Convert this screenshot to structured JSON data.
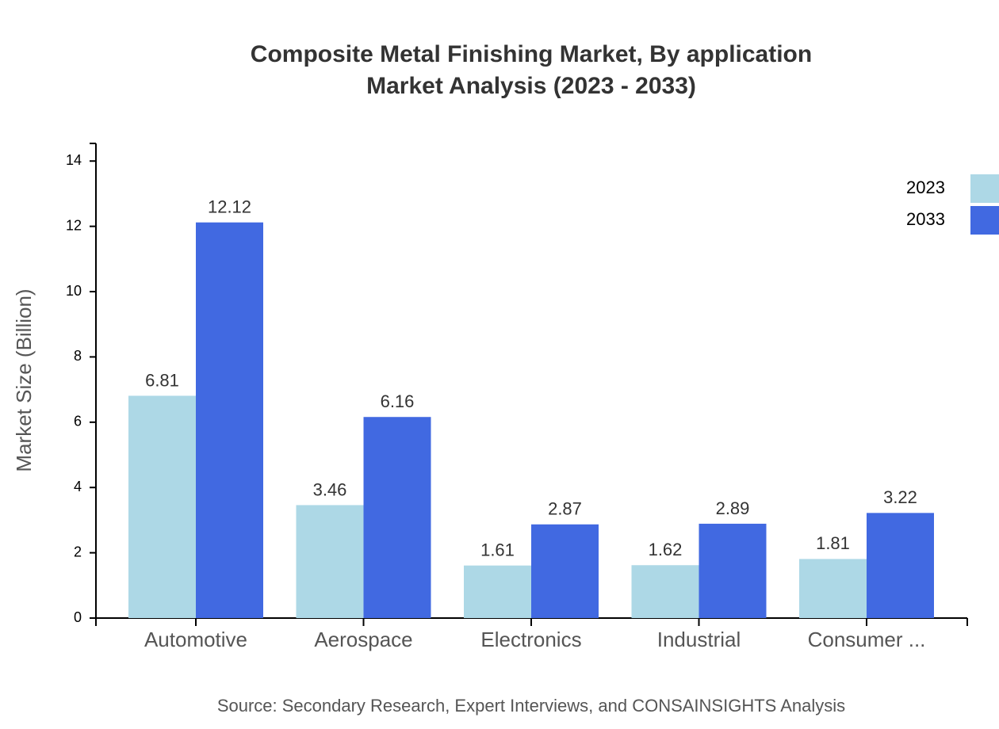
{
  "chart_data": {
    "type": "bar",
    "title": "Composite Metal Finishing Market, By application",
    "subtitle": "Market Analysis (2023 - 2033)",
    "y_label": "Market Size (Billion)",
    "source": "Source: Secondary Research, Expert Interviews, and CONSAINSIGHTS Analysis",
    "categories": [
      "Automotive",
      "Aerospace",
      "Electronics",
      "Industrial",
      "Consumer ..."
    ],
    "series": [
      {
        "name": "2023",
        "color": "#add8e6",
        "values": [
          6.81,
          3.46,
          1.61,
          1.62,
          1.81
        ]
      },
      {
        "name": "2033",
        "color": "#4169e1",
        "values": [
          12.12,
          6.16,
          2.87,
          2.89,
          3.22
        ]
      }
    ],
    "ylim": [
      0,
      14.54
    ],
    "yticks": [
      0,
      2,
      4,
      6,
      8,
      10,
      12,
      14
    ],
    "grid": false,
    "legend": "top-right"
  }
}
